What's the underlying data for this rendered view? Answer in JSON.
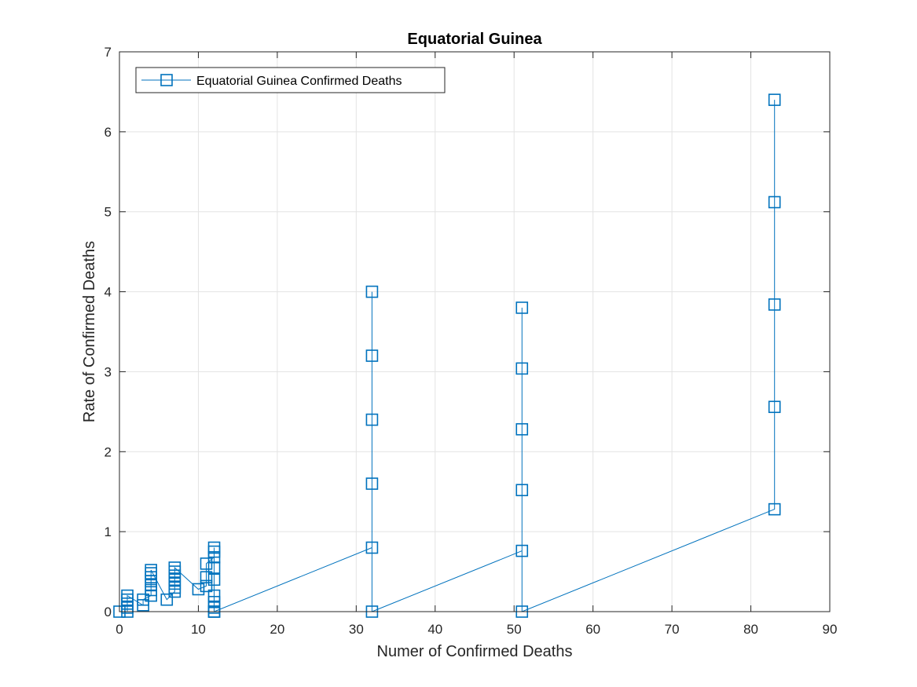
{
  "chart_data": {
    "type": "line",
    "title": "Equatorial Guinea",
    "xlabel": "Numer of Confirmed Deaths",
    "ylabel": "Rate of Confirmed Deaths",
    "xlim": [
      0,
      90
    ],
    "ylim": [
      0,
      7
    ],
    "xticks": [
      0,
      10,
      20,
      30,
      40,
      50,
      60,
      70,
      80,
      90
    ],
    "yticks": [
      0,
      1,
      2,
      3,
      4,
      5,
      6,
      7
    ],
    "grid": true,
    "legend_position": "top-left",
    "marker": "square",
    "color": "#0072BD",
    "series": [
      {
        "name": "Equatorial Guinea Confirmed Deaths",
        "x": [
          0,
          1,
          1,
          1,
          1,
          1,
          3,
          3,
          4,
          4,
          4,
          4,
          4,
          4,
          4,
          6,
          7,
          7,
          7,
          7,
          7,
          7,
          7,
          10,
          11,
          11,
          11,
          12,
          12,
          12,
          12,
          12,
          12,
          12,
          12,
          12,
          12,
          32,
          32,
          32,
          32,
          32,
          32,
          51,
          51,
          51,
          51,
          51,
          51,
          83,
          83,
          83,
          83,
          83
        ],
        "y": [
          0,
          0,
          0.05,
          0.1,
          0.15,
          0.2,
          0.08,
          0.15,
          0.2,
          0.27,
          0.33,
          0.38,
          0.43,
          0.48,
          0.52,
          0.15,
          0.25,
          0.3,
          0.35,
          0.4,
          0.45,
          0.5,
          0.55,
          0.28,
          0.32,
          0.43,
          0.6,
          0.68,
          0.75,
          0.8,
          0.55,
          0.4,
          0.2,
          0.12,
          0.05,
          0.0,
          0.0,
          0.8,
          1.6,
          2.4,
          3.2,
          4.0,
          0.0,
          0.76,
          1.52,
          2.28,
          3.04,
          3.8,
          0.0,
          1.28,
          2.56,
          3.84,
          5.12,
          6.4
        ]
      }
    ]
  }
}
